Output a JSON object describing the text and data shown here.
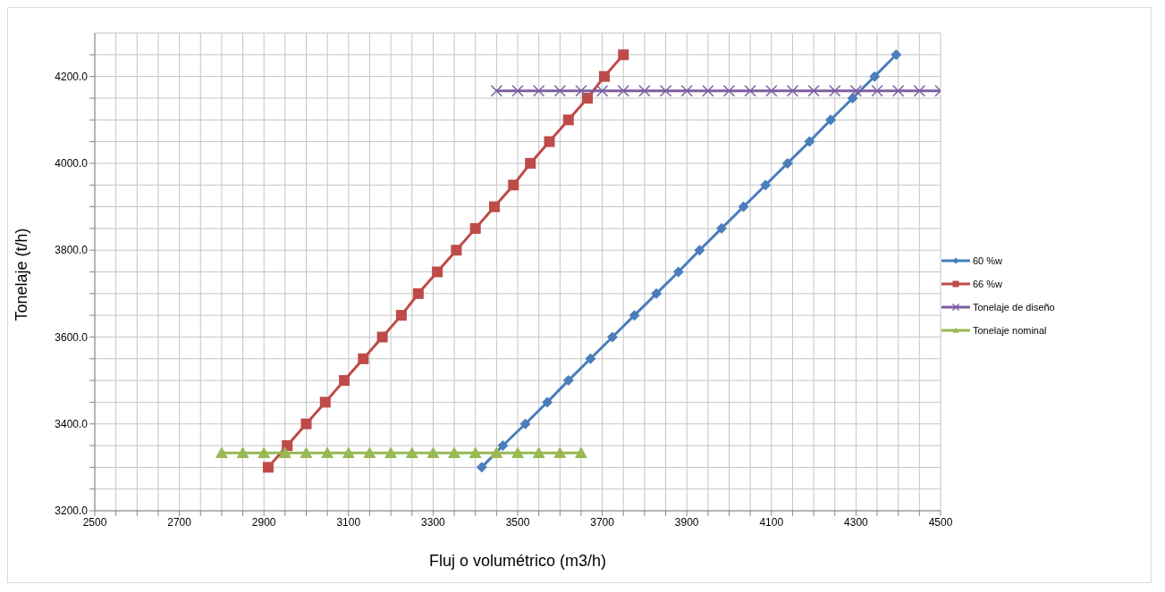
{
  "chart_data": {
    "type": "line",
    "xlabel": "Fluj o volumétrico (m3/h)",
    "ylabel": "Tonelaje  (t/h)",
    "xlim": [
      2500,
      4500
    ],
    "ylim": [
      3200,
      4300
    ],
    "xticks": [
      2500,
      {
        "value": 2550,
        "label": null
      },
      {
        "value": 2600,
        "label": null
      },
      {
        "value": 2650,
        "label": null
      },
      2700,
      {
        "value": 2750,
        "label": null
      },
      {
        "value": 2800,
        "label": null
      },
      {
        "value": 2850,
        "label": null
      },
      2900,
      {
        "value": 2950,
        "label": null
      },
      {
        "value": 3000,
        "label": null
      },
      {
        "value": 3050,
        "label": null
      },
      3100,
      {
        "value": 3150,
        "label": null
      },
      {
        "value": 3200,
        "label": null
      },
      {
        "value": 3250,
        "label": null
      },
      3300,
      {
        "value": 3350,
        "label": null
      },
      {
        "value": 3400,
        "label": null
      },
      {
        "value": 3450,
        "label": null
      },
      3500,
      {
        "value": 3550,
        "label": null
      },
      {
        "value": 3600,
        "label": null
      },
      {
        "value": 3650,
        "label": null
      },
      3700,
      {
        "value": 3750,
        "label": null
      },
      {
        "value": 3800,
        "label": null
      },
      {
        "value": 3850,
        "label": null
      },
      3900,
      {
        "value": 3950,
        "label": null
      },
      {
        "value": 4000,
        "label": null
      },
      {
        "value": 4050,
        "label": null
      },
      4100,
      {
        "value": 4150,
        "label": null
      },
      {
        "value": 4200,
        "label": null
      },
      {
        "value": 4250,
        "label": null
      },
      4300,
      {
        "value": 4350,
        "label": null
      },
      {
        "value": 4400,
        "label": null
      },
      {
        "value": 4450,
        "label": null
      },
      4500
    ],
    "yticks": [
      {
        "value": 3200,
        "label": "3200.0"
      },
      {
        "value": 3250,
        "label": null
      },
      {
        "value": 3300,
        "label": null
      },
      {
        "value": 3350,
        "label": null
      },
      {
        "value": 3400,
        "label": "3400.0"
      },
      {
        "value": 3450,
        "label": null
      },
      {
        "value": 3500,
        "label": null
      },
      {
        "value": 3550,
        "label": null
      },
      {
        "value": 3600,
        "label": "3600.0"
      },
      {
        "value": 3650,
        "label": null
      },
      {
        "value": 3700,
        "label": null
      },
      {
        "value": 3750,
        "label": null
      },
      {
        "value": 3800,
        "label": "3800.0"
      },
      {
        "value": 3850,
        "label": null
      },
      {
        "value": 3900,
        "label": null
      },
      {
        "value": 3950,
        "label": null
      },
      {
        "value": 4000,
        "label": "4000.0"
      },
      {
        "value": 4050,
        "label": null
      },
      {
        "value": 4100,
        "label": null
      },
      {
        "value": 4150,
        "label": null
      },
      {
        "value": 4200,
        "label": "4200.0"
      },
      {
        "value": 4250,
        "label": null
      }
    ],
    "grid": true,
    "legend": "right",
    "series": [
      {
        "name": "60 %w",
        "color": "#4a7ebb",
        "marker": "diamond",
        "x": [
          3415,
          3465,
          3518,
          3570,
          3620,
          3672,
          3724,
          3776,
          3828,
          3880,
          3930,
          3982,
          4034,
          4086,
          4138,
          4190,
          4240,
          4292,
          4344,
          4395
        ],
        "values": [
          3300,
          3350,
          3400,
          3450,
          3500,
          3550,
          3600,
          3650,
          3700,
          3750,
          3800,
          3850,
          3900,
          3950,
          4000,
          4050,
          4100,
          4150,
          4200,
          4250
        ]
      },
      {
        "name": "66 %w",
        "color": "#be4b48",
        "marker": "square",
        "x": [
          2910,
          2955,
          3000,
          3045,
          3090,
          3135,
          3180,
          3225,
          3265,
          3310,
          3355,
          3400,
          3445,
          3490,
          3530,
          3575,
          3620,
          3665,
          3705,
          3750
        ],
        "values": [
          3300,
          3350,
          3400,
          3450,
          3500,
          3550,
          3600,
          3650,
          3700,
          3750,
          3800,
          3850,
          3900,
          3950,
          4000,
          4050,
          4100,
          4150,
          4200,
          4250
        ]
      },
      {
        "name": "Tonelaje de diseño",
        "color": "#7d5fa0",
        "marker": "cross",
        "x": [
          3450,
          3500,
          3550,
          3600,
          3650,
          3700,
          3750,
          3800,
          3850,
          3900,
          3950,
          4000,
          4050,
          4100,
          4150,
          4200,
          4250,
          4300,
          4350,
          4400,
          4450,
          4500
        ],
        "values": [
          4167,
          4167,
          4167,
          4167,
          4167,
          4167,
          4167,
          4167,
          4167,
          4167,
          4167,
          4167,
          4167,
          4167,
          4167,
          4167,
          4167,
          4167,
          4167,
          4167,
          4167,
          4167
        ]
      },
      {
        "name": "Tonelaje nominal",
        "color": "#98b954",
        "marker": "triangle",
        "x": [
          2800,
          2850,
          2900,
          2950,
          3000,
          3050,
          3100,
          3150,
          3200,
          3250,
          3300,
          3350,
          3400,
          3450,
          3500,
          3550,
          3600,
          3650
        ],
        "values": [
          3333,
          3333,
          3333,
          3333,
          3333,
          3333,
          3333,
          3333,
          3333,
          3333,
          3333,
          3333,
          3333,
          3333,
          3333,
          3333,
          3333,
          3333
        ]
      }
    ]
  }
}
